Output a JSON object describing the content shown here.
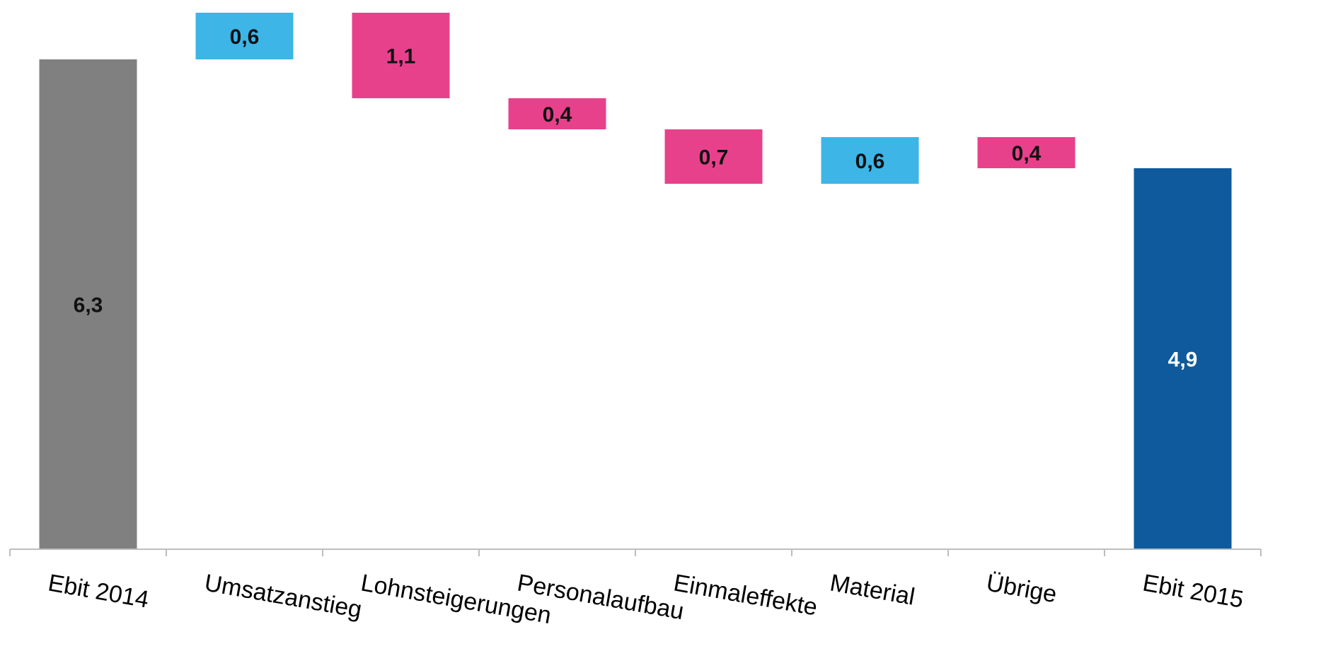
{
  "chart_data": {
    "type": "waterfall",
    "title": "",
    "xlabel": "",
    "ylabel": "",
    "ylim": [
      0,
      6.9
    ],
    "grid": false,
    "legend": "none",
    "categories": [
      "Ebit 2014",
      "Umsatzanstieg",
      "Lohnsteigerungen",
      "Personalaufbau",
      "Einmaleffekte",
      "Material",
      "Übrige",
      "Ebit  2015"
    ],
    "steps": [
      {
        "category": "Ebit 2014",
        "kind": "total",
        "value": 6.3,
        "label": "6,3"
      },
      {
        "category": "Umsatzanstieg",
        "kind": "increase",
        "value": 0.6,
        "label": "0,6"
      },
      {
        "category": "Lohnsteigerungen",
        "kind": "decrease",
        "value": 1.1,
        "label": "1,1"
      },
      {
        "category": "Personalaufbau",
        "kind": "decrease",
        "value": 0.4,
        "label": "0,4"
      },
      {
        "category": "Einmaleffekte",
        "kind": "decrease",
        "value": 0.7,
        "label": "0,7"
      },
      {
        "category": "Material",
        "kind": "increase",
        "value": 0.6,
        "label": "0,6"
      },
      {
        "category": "Übrige",
        "kind": "decrease",
        "value": 0.4,
        "label": "0,4"
      },
      {
        "category": "Ebit  2015",
        "kind": "total",
        "value": 4.9,
        "label": "4,9"
      }
    ],
    "colors": {
      "start_total": "#808080",
      "end_total": "#0E5A9C",
      "increase": "#3DB5E6",
      "decrease": "#E8418C",
      "axis": "#BDBDBD",
      "label_dark": "#111111",
      "label_light": "#FFFFFF"
    }
  }
}
